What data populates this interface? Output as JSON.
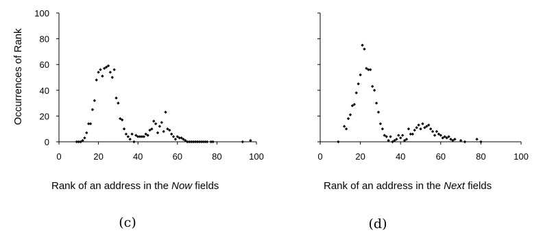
{
  "chart_data": [
    {
      "type": "scatter",
      "panel_label": "(c)",
      "xlabel_prefix": "Rank of an address in the ",
      "xlabel_emph": "Now",
      "xlabel_suffix": " fields",
      "ylabel": "Occurrences of Rank",
      "xlim": [
        0,
        100
      ],
      "ylim": [
        0,
        100
      ],
      "xticks": [
        "0",
        "20",
        "40",
        "60",
        "80",
        "100"
      ],
      "yticks": [
        "0",
        "20",
        "40",
        "60",
        "80",
        "100"
      ],
      "grid": false,
      "points": [
        [
          9,
          0
        ],
        [
          10,
          0
        ],
        [
          11,
          0
        ],
        [
          12,
          1
        ],
        [
          13,
          3
        ],
        [
          14,
          7
        ],
        [
          15,
          14
        ],
        [
          16,
          14
        ],
        [
          17,
          25
        ],
        [
          18,
          32
        ],
        [
          19,
          48
        ],
        [
          20,
          54
        ],
        [
          21,
          56
        ],
        [
          22,
          51
        ],
        [
          23,
          57
        ],
        [
          24,
          58
        ],
        [
          25,
          59
        ],
        [
          26,
          54
        ],
        [
          27,
          50
        ],
        [
          28,
          56
        ],
        [
          29,
          34
        ],
        [
          30,
          30
        ],
        [
          31,
          18
        ],
        [
          32,
          17
        ],
        [
          33,
          10
        ],
        [
          34,
          6
        ],
        [
          35,
          4
        ],
        [
          36,
          2
        ],
        [
          37,
          6
        ],
        [
          38,
          0
        ],
        [
          39,
          5
        ],
        [
          40,
          4
        ],
        [
          41,
          4
        ],
        [
          42,
          4
        ],
        [
          43,
          4
        ],
        [
          44,
          6
        ],
        [
          45,
          5
        ],
        [
          46,
          9
        ],
        [
          47,
          10
        ],
        [
          48,
          16
        ],
        [
          49,
          14
        ],
        [
          50,
          7
        ],
        [
          51,
          12
        ],
        [
          52,
          15
        ],
        [
          53,
          8
        ],
        [
          54,
          23
        ],
        [
          55,
          10
        ],
        [
          56,
          9
        ],
        [
          57,
          6
        ],
        [
          58,
          4
        ],
        [
          59,
          2
        ],
        [
          60,
          4
        ],
        [
          61,
          3
        ],
        [
          62,
          3
        ],
        [
          63,
          2
        ],
        [
          64,
          1
        ],
        [
          65,
          0
        ],
        [
          66,
          0
        ],
        [
          67,
          0
        ],
        [
          68,
          0
        ],
        [
          69,
          0
        ],
        [
          70,
          0
        ],
        [
          71,
          0
        ],
        [
          72,
          0
        ],
        [
          73,
          0
        ],
        [
          74,
          0
        ],
        [
          75,
          0
        ],
        [
          77,
          0
        ],
        [
          78,
          0
        ],
        [
          93,
          0
        ],
        [
          97,
          1
        ]
      ]
    },
    {
      "type": "scatter",
      "panel_label": "(d)",
      "xlabel_prefix": "Rank of an address in the ",
      "xlabel_emph": "Next",
      "xlabel_suffix": " fields",
      "xlim": [
        0,
        100
      ],
      "ylim": [
        0,
        100
      ],
      "xticks": [
        "0",
        "20",
        "40",
        "60",
        "80",
        "100"
      ],
      "grid": false,
      "points": [
        [
          9,
          0
        ],
        [
          12,
          12
        ],
        [
          13,
          10
        ],
        [
          14,
          18
        ],
        [
          15,
          21
        ],
        [
          16,
          28
        ],
        [
          17,
          29
        ],
        [
          18,
          38
        ],
        [
          19,
          45
        ],
        [
          20,
          52
        ],
        [
          21,
          75
        ],
        [
          22,
          72
        ],
        [
          23,
          57
        ],
        [
          24,
          56
        ],
        [
          25,
          56
        ],
        [
          26,
          43
        ],
        [
          27,
          40
        ],
        [
          28,
          30
        ],
        [
          29,
          23
        ],
        [
          30,
          14
        ],
        [
          31,
          10
        ],
        [
          32,
          5
        ],
        [
          33,
          4
        ],
        [
          34,
          1
        ],
        [
          35,
          4
        ],
        [
          36,
          0
        ],
        [
          37,
          1
        ],
        [
          38,
          2
        ],
        [
          39,
          5
        ],
        [
          40,
          3
        ],
        [
          41,
          5
        ],
        [
          42,
          1
        ],
        [
          43,
          2
        ],
        [
          44,
          10
        ],
        [
          45,
          6
        ],
        [
          46,
          6
        ],
        [
          47,
          9
        ],
        [
          48,
          11
        ],
        [
          49,
          13
        ],
        [
          50,
          10
        ],
        [
          51,
          14
        ],
        [
          52,
          11
        ],
        [
          53,
          12
        ],
        [
          54,
          13
        ],
        [
          55,
          10
        ],
        [
          56,
          8
        ],
        [
          57,
          5
        ],
        [
          58,
          8
        ],
        [
          59,
          6
        ],
        [
          60,
          5
        ],
        [
          61,
          3
        ],
        [
          62,
          4
        ],
        [
          63,
          3
        ],
        [
          64,
          4
        ],
        [
          65,
          2
        ],
        [
          66,
          1
        ],
        [
          67,
          2
        ],
        [
          70,
          1
        ],
        [
          72,
          0
        ],
        [
          78,
          2
        ],
        [
          80,
          0
        ]
      ]
    }
  ]
}
